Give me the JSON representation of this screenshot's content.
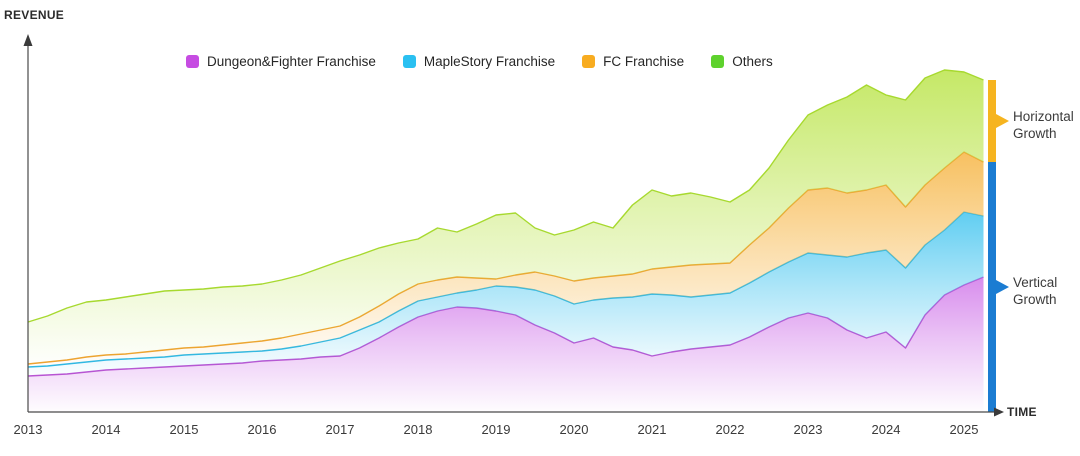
{
  "axis": {
    "y_caption": "REVENUE",
    "x_caption": "TIME"
  },
  "legend": [
    {
      "label": "Dungeon&Fighter Franchise",
      "color": "#c64ce2"
    },
    {
      "label": "MapleStory Franchise",
      "color": "#2ac0f1"
    },
    {
      "label": "FC Franchise",
      "color": "#f8ac20"
    },
    {
      "label": "Others",
      "color": "#5ed22d"
    }
  ],
  "annotations": {
    "horizontal": {
      "label": "Horizontal Growth",
      "color": "#f6b41f"
    },
    "vertical": {
      "label": "Vertical Growth",
      "color": "#1b7cd2"
    }
  },
  "chart_data": {
    "type": "area",
    "stacked": true,
    "title": "",
    "xlabel": "TIME",
    "ylabel": "REVENUE",
    "units": "relative revenue (y axis unlabeled)",
    "legend_position": "top",
    "grid": false,
    "x_ticks": [
      2013,
      2014,
      2015,
      2016,
      2017,
      2018,
      2019,
      2020,
      2021,
      2022,
      2023,
      2024,
      2025
    ],
    "x": [
      2013,
      2013.25,
      2013.5,
      2013.75,
      2014,
      2014.25,
      2014.5,
      2014.75,
      2015,
      2015.25,
      2015.5,
      2015.75,
      2016,
      2016.25,
      2016.5,
      2016.75,
      2017,
      2017.25,
      2017.5,
      2017.75,
      2018,
      2018.25,
      2018.5,
      2018.75,
      2019,
      2019.25,
      2019.5,
      2019.75,
      2020,
      2020.25,
      2020.5,
      2020.75,
      2021,
      2021.25,
      2021.5,
      2021.75,
      2022,
      2022.25,
      2022.5,
      2022.75,
      2023,
      2023.25,
      2023.5,
      2023.75,
      2024,
      2024.25,
      2024.5,
      2024.75,
      2025,
      2025.25
    ],
    "series": [
      {
        "id": "dungeon-fighter",
        "name": "Dungeon&Fighter Franchise",
        "color": "#c64ce2",
        "fill": "#d687ec",
        "stroke": "#b953d2",
        "values": [
          36,
          37,
          38,
          40,
          42,
          43,
          44,
          45,
          46,
          47,
          48,
          49,
          51,
          52,
          53,
          55,
          56,
          64,
          74,
          85,
          95,
          101,
          105,
          104,
          101,
          97,
          87,
          79,
          69,
          74,
          65,
          62,
          56,
          60,
          63,
          65,
          67,
          75,
          85,
          94,
          99,
          94,
          82,
          74,
          80,
          64,
          97,
          117,
          127,
          135
        ]
      },
      {
        "id": "maplestory",
        "name": "MapleStory Franchise",
        "color": "#2ac0f1",
        "fill": "#58cbf1",
        "stroke": "#2db8e5",
        "values": [
          9,
          9,
          10,
          10,
          10,
          10,
          10,
          10,
          11,
          11,
          11,
          11,
          10,
          11,
          13,
          15,
          18,
          18,
          16,
          16,
          16,
          14,
          14,
          18,
          25,
          28,
          35,
          37,
          39,
          38,
          49,
          53,
          62,
          57,
          52,
          52,
          52,
          54,
          55,
          56,
          60,
          63,
          73,
          85,
          82,
          80,
          70,
          65,
          73,
          61
        ]
      },
      {
        "id": "fc",
        "name": "FC Franchise",
        "color": "#f8ac20",
        "fill": "#f7bd58",
        "stroke": "#eea22f",
        "values": [
          3,
          4,
          4,
          5,
          5,
          5,
          6,
          7,
          7,
          7,
          8,
          9,
          10,
          11,
          12,
          12,
          12,
          13,
          16,
          17,
          17,
          17,
          16,
          12,
          7,
          12,
          18,
          20,
          23,
          22,
          22,
          23,
          25,
          28,
          32,
          31,
          30,
          38,
          44,
          54,
          63,
          67,
          64,
          63,
          65,
          61,
          60,
          62,
          60,
          54
        ]
      },
      {
        "id": "others",
        "name": "Others",
        "color": "#5ed22d",
        "fill": "#c2e75e",
        "stroke": "#a7d92f",
        "values": [
          42,
          46,
          52,
          55,
          55,
          57,
          58,
          59,
          58,
          58,
          58,
          57,
          57,
          58,
          59,
          62,
          65,
          62,
          58,
          51,
          45,
          52,
          45,
          54,
          64,
          62,
          44,
          41,
          51,
          56,
          48,
          69,
          79,
          71,
          72,
          67,
          61,
          55,
          60,
          68,
          75,
          83,
          96,
          105,
          90,
          107,
          107,
          98,
          80,
          82
        ]
      }
    ],
    "right_bars": {
      "horizontal_growth_span": "Others layer at final point",
      "vertical_growth_span": "Dungeon&Fighter + MapleStory + FC layers at final point"
    }
  }
}
